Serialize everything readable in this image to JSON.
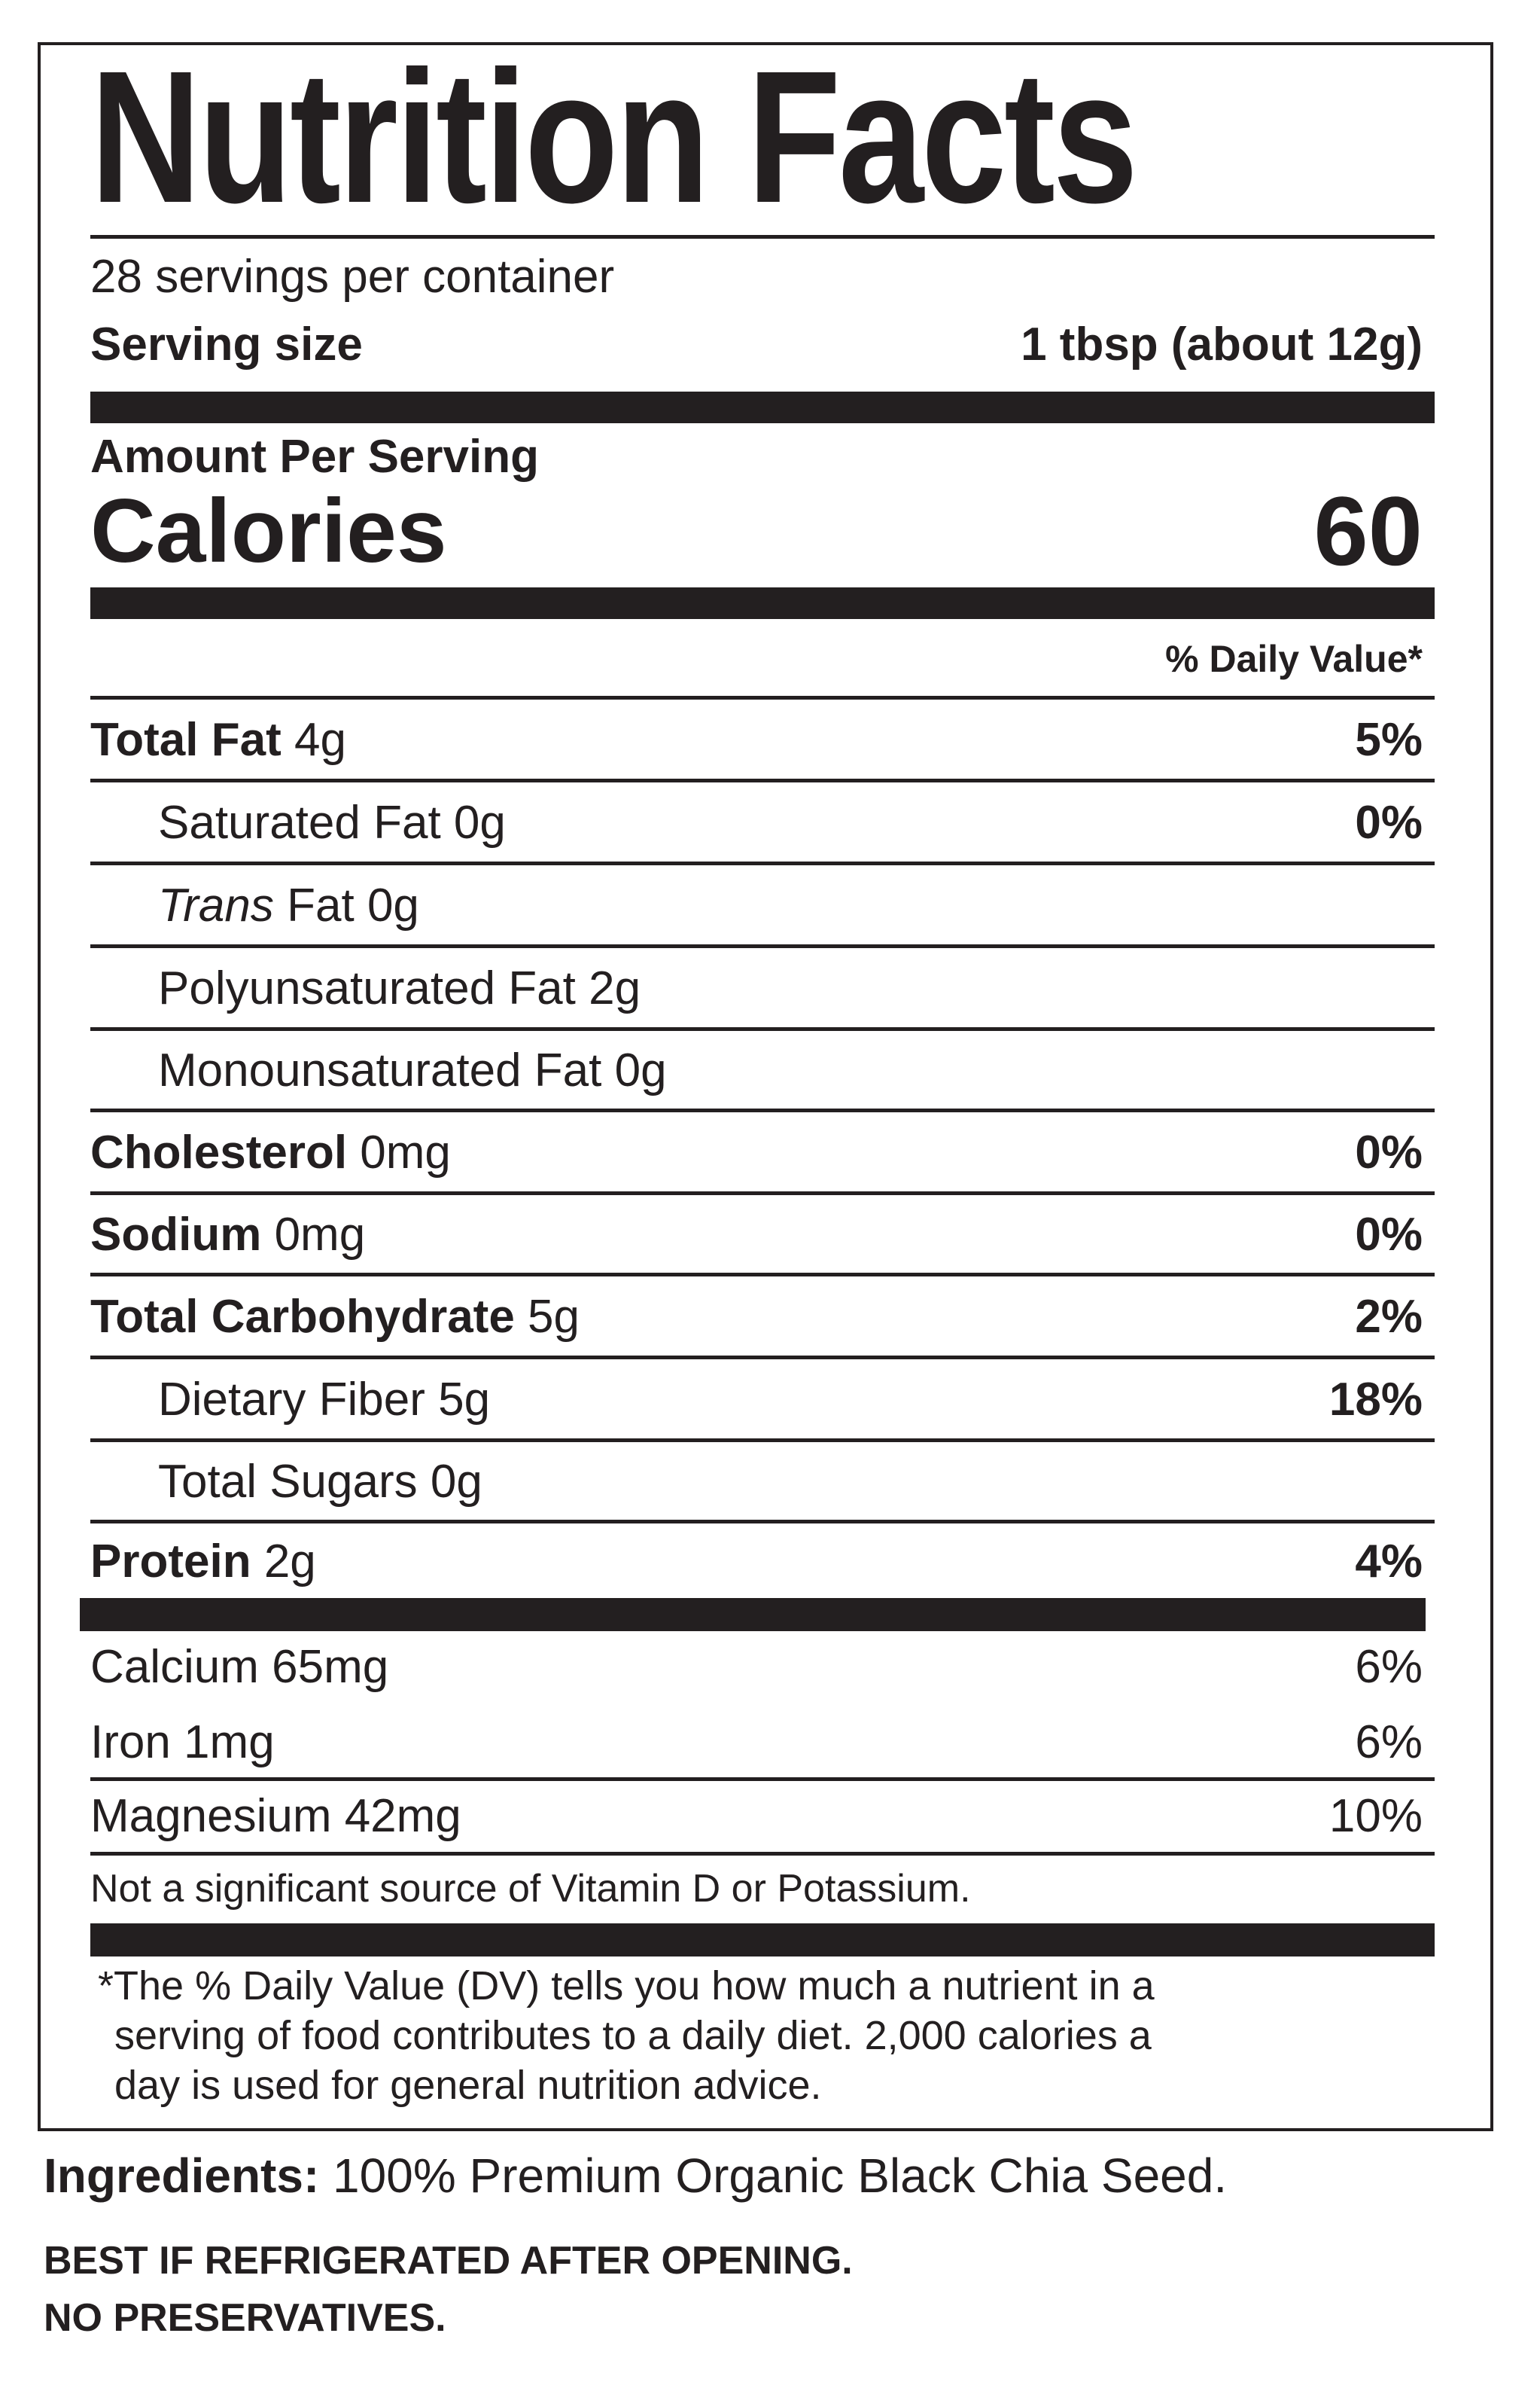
{
  "title": "Nutrition Facts",
  "servings_per_container": "28 servings per container",
  "serving_size": {
    "label": "Serving size",
    "value": "1 tbsp (about 12g)"
  },
  "amount_per_serving": "Amount Per Serving",
  "calories": {
    "label": "Calories",
    "value": "60"
  },
  "dv_header": "% Daily Value*",
  "nutrients": [
    {
      "name": "Total Fat",
      "amount": "4g",
      "dv": "5%"
    },
    {
      "name": "Saturated Fat",
      "amount": "0g",
      "dv": "0%"
    },
    {
      "name_italic": "Trans",
      "name": "Fat",
      "amount": "0g"
    },
    {
      "name": "Polyunsaturated Fat",
      "amount": "2g"
    },
    {
      "name": "Monounsaturated Fat",
      "amount": "0g"
    },
    {
      "name": "Cholesterol",
      "amount": "0mg",
      "dv": "0%"
    },
    {
      "name": "Sodium",
      "amount": "0mg",
      "dv": "0%"
    },
    {
      "name": "Total Carbohydrate",
      "amount": "5g",
      "dv": "2%"
    },
    {
      "name": "Dietary Fiber",
      "amount": "5g",
      "dv": "18%"
    },
    {
      "name": "Total Sugars",
      "amount": "0g"
    },
    {
      "name": "Protein",
      "amount": "2g",
      "dv": "4%"
    }
  ],
  "minerals": [
    {
      "label": "Calcium 65mg",
      "dv": "6%"
    },
    {
      "label": "Iron 1mg",
      "dv": "6%"
    },
    {
      "label": "Magnesium 42mg",
      "dv": "10%"
    }
  ],
  "not_significant": "Not a significant source of Vitamin D or Potassium.",
  "footnote": [
    "*The % Daily Value (DV) tells you how much a nutrient in a",
    "serving of food contributes to a daily diet. 2,000 calories a",
    "day is used for general nutrition advice."
  ],
  "ingredients": {
    "label": "Ingredients:",
    "text": "100% Premium Organic Black Chia Seed."
  },
  "notices": [
    "BEST IF REFRIGERATED AFTER OPENING.",
    "NO PRESERVATIVES."
  ]
}
